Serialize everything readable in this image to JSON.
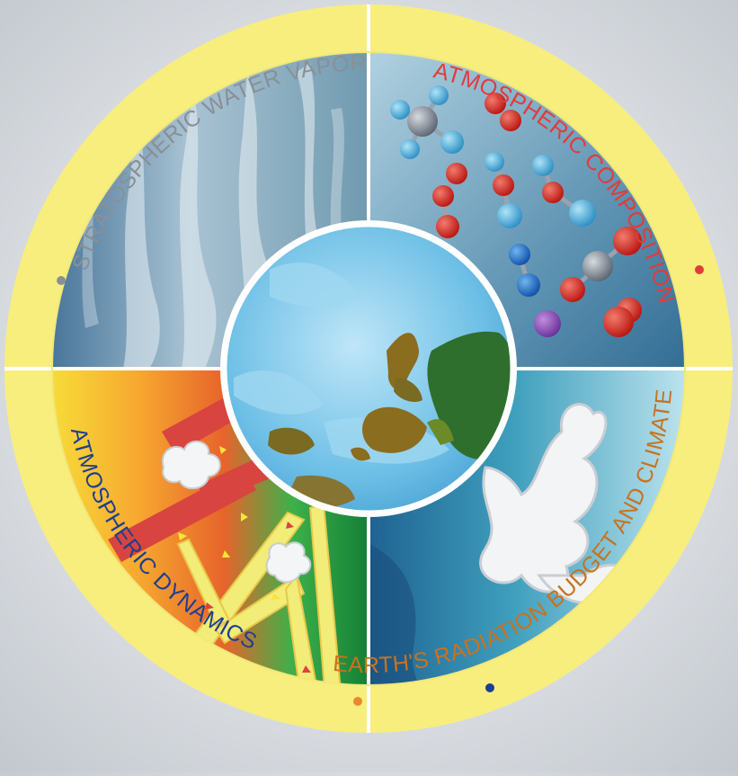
{
  "diagram": {
    "quadrants": [
      {
        "id": "water-vapor",
        "label": "STRATOSPHERIC WATER VAPOR",
        "color": "#8a8f96"
      },
      {
        "id": "composition",
        "label": "ATMOSPHERIC COMPOSITION",
        "color": "#e23b3b"
      },
      {
        "id": "dynamics",
        "label": "ATMOSPHERIC DYNAMICS",
        "color": "#1e3f8f"
      },
      {
        "id": "radiation",
        "label": "EARTH'S RADIATION BUDGET AND CLIMATE",
        "color": "#e8892e"
      }
    ],
    "ring_color": "#f7ee7e",
    "center": "earth-globe"
  }
}
